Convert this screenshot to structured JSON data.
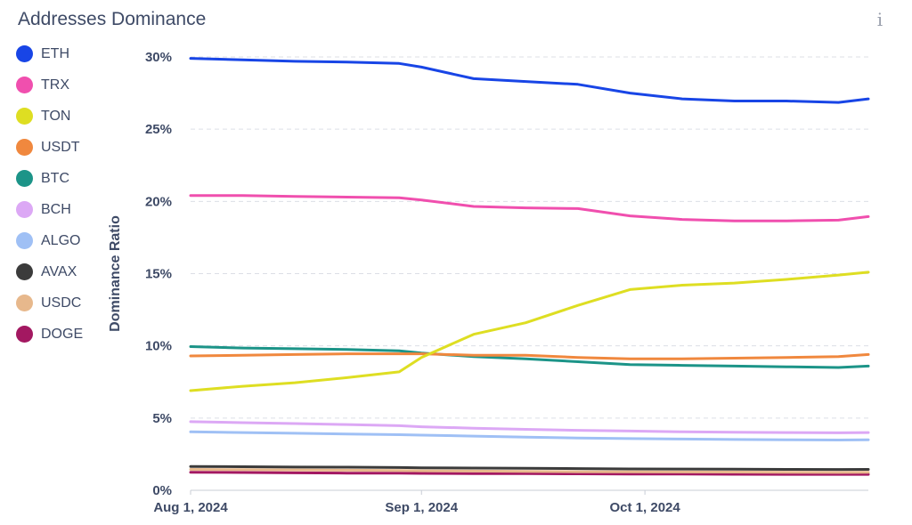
{
  "chart_data": {
    "type": "line",
    "title": "Addresses Dominance",
    "ylabel": "Dominance Ratio",
    "xlabel": "",
    "y_unit": "%",
    "ylim": [
      0,
      30
    ],
    "yticks": [
      0,
      5,
      10,
      15,
      20,
      25,
      30
    ],
    "ytick_labels": [
      "0%",
      "5%",
      "10%",
      "15%",
      "20%",
      "25%",
      "30%"
    ],
    "xlim": [
      "2024-08-01",
      "2024-10-31"
    ],
    "xticks": [
      "2024-08-01",
      "2024-09-01",
      "2024-10-01"
    ],
    "xtick_labels": [
      "Aug 1, 2024",
      "Sep 1, 2024",
      "Oct 1, 2024"
    ],
    "grid": "horizontal dashed",
    "legend_position": "left",
    "x": [
      "2024-08-01",
      "2024-08-08",
      "2024-08-15",
      "2024-08-22",
      "2024-08-29",
      "2024-09-01",
      "2024-09-08",
      "2024-09-15",
      "2024-09-22",
      "2024-09-29",
      "2024-10-06",
      "2024-10-13",
      "2024-10-20",
      "2024-10-27",
      "2024-10-31"
    ],
    "series": [
      {
        "name": "ETH",
        "color": "#1845e6",
        "values": [
          29.9,
          29.8,
          29.7,
          29.65,
          29.55,
          29.3,
          28.5,
          28.3,
          28.1,
          27.5,
          27.1,
          26.95,
          26.95,
          26.85,
          27.1
        ]
      },
      {
        "name": "TRX",
        "color": "#f04fae",
        "values": [
          20.4,
          20.4,
          20.35,
          20.3,
          20.25,
          20.1,
          19.65,
          19.55,
          19.5,
          19.0,
          18.75,
          18.65,
          18.65,
          18.7,
          18.95
        ]
      },
      {
        "name": "TON",
        "color": "#dede22",
        "values": [
          6.9,
          7.2,
          7.45,
          7.8,
          8.2,
          9.2,
          10.8,
          11.6,
          12.8,
          13.9,
          14.2,
          14.35,
          14.6,
          14.9,
          15.1
        ]
      },
      {
        "name": "USDT",
        "color": "#f0883e",
        "values": [
          9.3,
          9.35,
          9.4,
          9.45,
          9.45,
          9.45,
          9.35,
          9.35,
          9.2,
          9.1,
          9.1,
          9.15,
          9.2,
          9.25,
          9.4
        ]
      },
      {
        "name": "BTC",
        "color": "#1c9488",
        "values": [
          9.95,
          9.85,
          9.8,
          9.75,
          9.65,
          9.5,
          9.25,
          9.1,
          8.9,
          8.7,
          8.65,
          8.6,
          8.55,
          8.5,
          8.6
        ]
      },
      {
        "name": "BCH",
        "color": "#dca8f5",
        "values": [
          4.75,
          4.68,
          4.62,
          4.55,
          4.47,
          4.4,
          4.3,
          4.22,
          4.15,
          4.1,
          4.05,
          4.02,
          4.0,
          3.98,
          4.0
        ]
      },
      {
        "name": "ALGO",
        "color": "#9fc0f5",
        "values": [
          4.05,
          4.0,
          3.95,
          3.9,
          3.85,
          3.82,
          3.75,
          3.68,
          3.62,
          3.58,
          3.55,
          3.52,
          3.5,
          3.48,
          3.5
        ]
      },
      {
        "name": "AVAX",
        "color": "#3b3b3b",
        "values": [
          1.65,
          1.63,
          1.61,
          1.6,
          1.58,
          1.56,
          1.54,
          1.52,
          1.5,
          1.48,
          1.47,
          1.46,
          1.45,
          1.44,
          1.45
        ]
      },
      {
        "name": "USDC",
        "color": "#e7b88c",
        "values": [
          1.45,
          1.43,
          1.41,
          1.39,
          1.37,
          1.35,
          1.33,
          1.31,
          1.29,
          1.28,
          1.27,
          1.26,
          1.25,
          1.24,
          1.25
        ]
      },
      {
        "name": "DOGE",
        "color": "#a31861",
        "values": [
          1.25,
          1.23,
          1.21,
          1.19,
          1.18,
          1.17,
          1.16,
          1.15,
          1.14,
          1.13,
          1.12,
          1.11,
          1.1,
          1.1,
          1.1
        ]
      }
    ]
  }
}
